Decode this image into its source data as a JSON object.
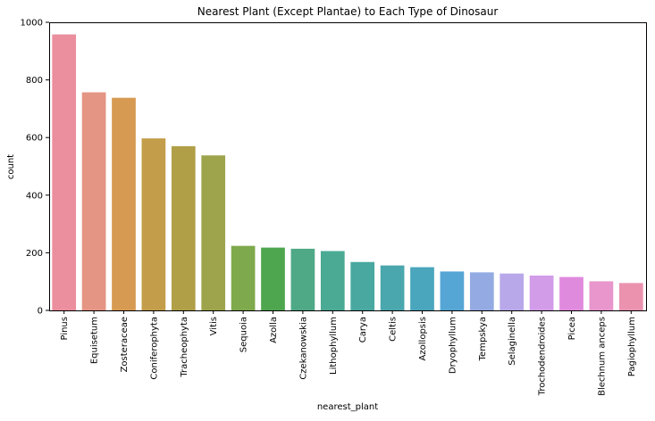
{
  "chart_data": {
    "type": "bar",
    "title": "Nearest Plant (Except Plantae) to Each Type of Dinosaur",
    "xlabel": "nearest_plant",
    "ylabel": "count",
    "ylim": [
      0,
      1000
    ],
    "yticks": [
      0,
      200,
      400,
      600,
      800,
      1000
    ],
    "grid": false,
    "legend": "none",
    "categories": [
      "Pinus",
      "Equisetum",
      "Zosteraceae",
      "Coniferophyta",
      "Tracheophyta",
      "Vitis",
      "Sequoia",
      "Azolla",
      "Czekanowskia",
      "Lithophyllum",
      "Carya",
      "Celtis",
      "Azollopsis",
      "Dryophyllum",
      "Tempskya",
      "Selaginella",
      "Trochodendroides",
      "Picea",
      "Blechnum anceps",
      "Pagiophyllum"
    ],
    "values": [
      958,
      757,
      738,
      597,
      570,
      538,
      224,
      218,
      214,
      206,
      168,
      156,
      150,
      135,
      132,
      128,
      121,
      116,
      101,
      95
    ],
    "colors": [
      "#eb8e9e",
      "#e49583",
      "#d79a52",
      "#c49d4a",
      "#b09f47",
      "#9ea44c",
      "#7ea94c",
      "#4ea74f",
      "#4fa986",
      "#4aaa94",
      "#49a8a0",
      "#4aa7ad",
      "#4aa6bc",
      "#56a6d5",
      "#93abe2",
      "#b8a8ea",
      "#d29ce8",
      "#e08ade",
      "#e896cc",
      "#eb92af"
    ]
  }
}
